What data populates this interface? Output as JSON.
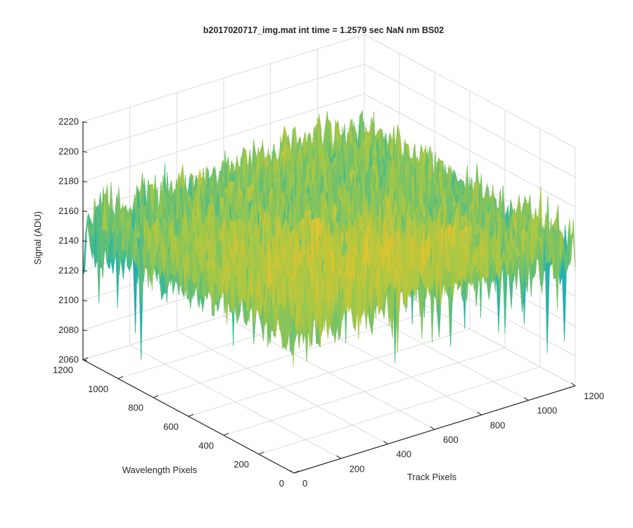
{
  "chart_data": {
    "type": "surface",
    "title": "b2017020717_img.mat int time = 1.2579 sec  NaN nm BS02",
    "xlabel": "Track Pixels",
    "ylabel": "Wavelength Pixels",
    "zlabel": "Signal (ADU)",
    "xlim": [
      0,
      1200
    ],
    "ylim": [
      0,
      1200
    ],
    "zlim": [
      2060,
      2220
    ],
    "xticks": [
      "0",
      "200",
      "400",
      "600",
      "800",
      "1000",
      "1200"
    ],
    "yticks": [
      "0",
      "200",
      "400",
      "600",
      "800",
      "1000",
      "1200"
    ],
    "zticks": [
      "2060",
      "2080",
      "2100",
      "2120",
      "2140",
      "2160",
      "2180",
      "2200",
      "2220"
    ],
    "grid": true,
    "colormap": "parula",
    "surface_extent": {
      "x": [
        0,
        1200
      ],
      "y": [
        0,
        1200
      ]
    },
    "signal_mean_approx": 2150,
    "signal_range_approx": [
      2075,
      2200
    ],
    "colors": {
      "low": "#0a9ad8",
      "mid": "#3cb89a",
      "high": "#f2c12e",
      "axis": "#262626",
      "grid": "#dcdcdc"
    }
  }
}
